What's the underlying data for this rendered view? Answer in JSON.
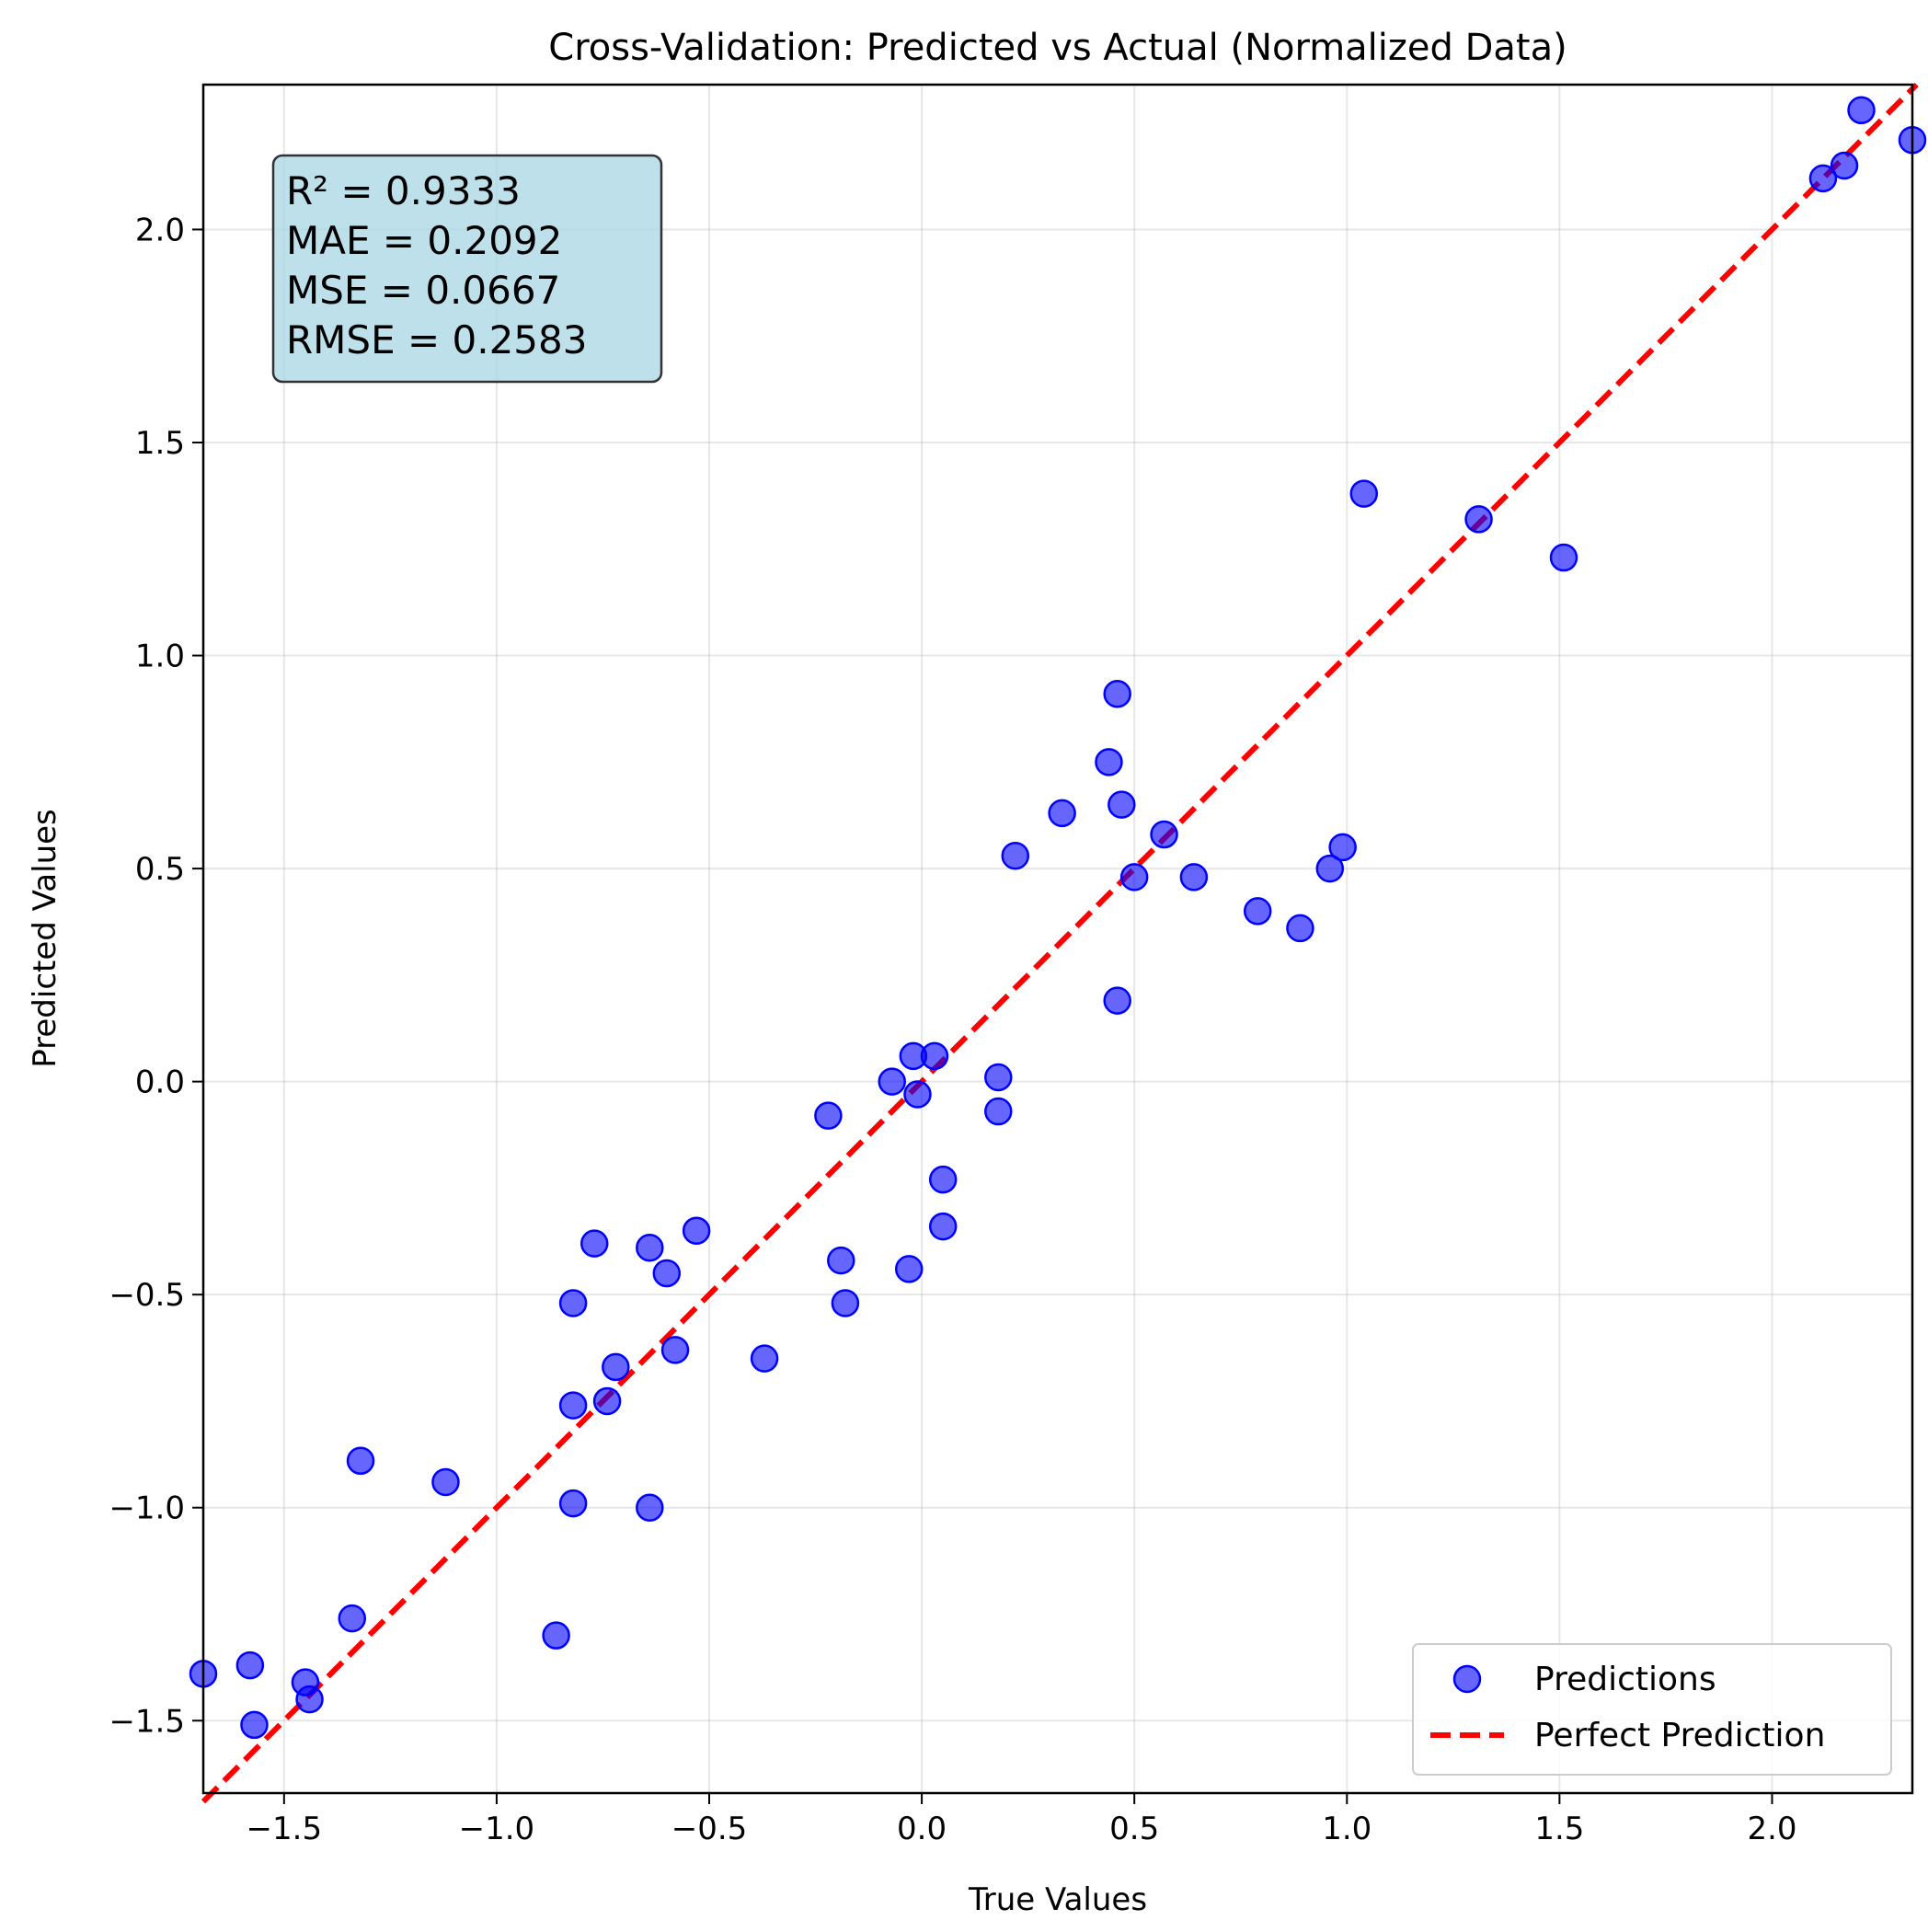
{
  "chart_data": {
    "type": "scatter",
    "title": "Cross-Validation: Predicted vs Actual (Normalized Data)",
    "xlabel": "True Values",
    "ylabel": "Predicted Values",
    "xlim": [
      -1.69,
      2.33
    ],
    "ylim": [
      -1.67,
      2.34
    ],
    "grid": true,
    "legend_position": "bottom-right",
    "x_ticks": [
      -1.5,
      -1.0,
      -0.5,
      0.0,
      0.5,
      1.0,
      1.5,
      2.0
    ],
    "x_tick_labels": [
      "−1.5",
      "−1.0",
      "−0.5",
      "0.0",
      "0.5",
      "1.0",
      "1.5",
      "2.0"
    ],
    "y_ticks": [
      -1.5,
      -1.0,
      -0.5,
      0.0,
      0.5,
      1.0,
      1.5,
      2.0
    ],
    "y_tick_labels": [
      "−1.5",
      "−1.0",
      "−0.5",
      "0.0",
      "0.5",
      "1.0",
      "1.5",
      "2.0"
    ],
    "series": [
      {
        "name": "Predictions",
        "kind": "scatter",
        "color": "#0000ff",
        "points": [
          [
            -1.69,
            -1.39
          ],
          [
            -1.58,
            -1.37
          ],
          [
            -1.57,
            -1.51
          ],
          [
            -1.45,
            -1.41
          ],
          [
            -1.44,
            -1.45
          ],
          [
            -1.34,
            -1.26
          ],
          [
            -1.32,
            -0.89
          ],
          [
            -1.12,
            -0.94
          ],
          [
            -0.86,
            -1.3
          ],
          [
            -0.82,
            -0.52
          ],
          [
            -0.82,
            -0.76
          ],
          [
            -0.82,
            -0.99
          ],
          [
            -0.77,
            -0.38
          ],
          [
            -0.74,
            -0.75
          ],
          [
            -0.72,
            -0.67
          ],
          [
            -0.64,
            -0.39
          ],
          [
            -0.64,
            -1.0
          ],
          [
            -0.6,
            -0.45
          ],
          [
            -0.58,
            -0.63
          ],
          [
            -0.53,
            -0.35
          ],
          [
            -0.37,
            -0.65
          ],
          [
            -0.22,
            -0.08
          ],
          [
            -0.19,
            -0.42
          ],
          [
            -0.18,
            -0.52
          ],
          [
            -0.07,
            0.0
          ],
          [
            -0.03,
            -0.44
          ],
          [
            -0.02,
            0.06
          ],
          [
            -0.01,
            -0.03
          ],
          [
            0.03,
            0.06
          ],
          [
            0.05,
            -0.23
          ],
          [
            0.05,
            -0.34
          ],
          [
            0.18,
            0.01
          ],
          [
            0.18,
            -0.07
          ],
          [
            0.22,
            0.53
          ],
          [
            0.33,
            0.63
          ],
          [
            0.44,
            0.75
          ],
          [
            0.46,
            0.91
          ],
          [
            0.46,
            0.19
          ],
          [
            0.47,
            0.65
          ],
          [
            0.5,
            0.48
          ],
          [
            0.57,
            0.58
          ],
          [
            0.64,
            0.48
          ],
          [
            0.79,
            0.4
          ],
          [
            0.89,
            0.36
          ],
          [
            0.96,
            0.5
          ],
          [
            0.99,
            0.55
          ],
          [
            1.04,
            1.38
          ],
          [
            1.31,
            1.32
          ],
          [
            1.51,
            1.23
          ],
          [
            2.12,
            2.12
          ],
          [
            2.17,
            2.15
          ],
          [
            2.21,
            2.28
          ],
          [
            2.33,
            2.21
          ]
        ]
      },
      {
        "name": "Perfect Prediction",
        "kind": "line",
        "color": "#ff0000",
        "style": "dashed",
        "points": [
          [
            -1.69,
            -1.69
          ],
          [
            2.34,
            2.34
          ]
        ]
      }
    ],
    "annotation_lines": [
      "R² = 0.9333",
      "MAE = 0.2092",
      "MSE = 0.0667",
      "RMSE = 0.2583"
    ]
  }
}
